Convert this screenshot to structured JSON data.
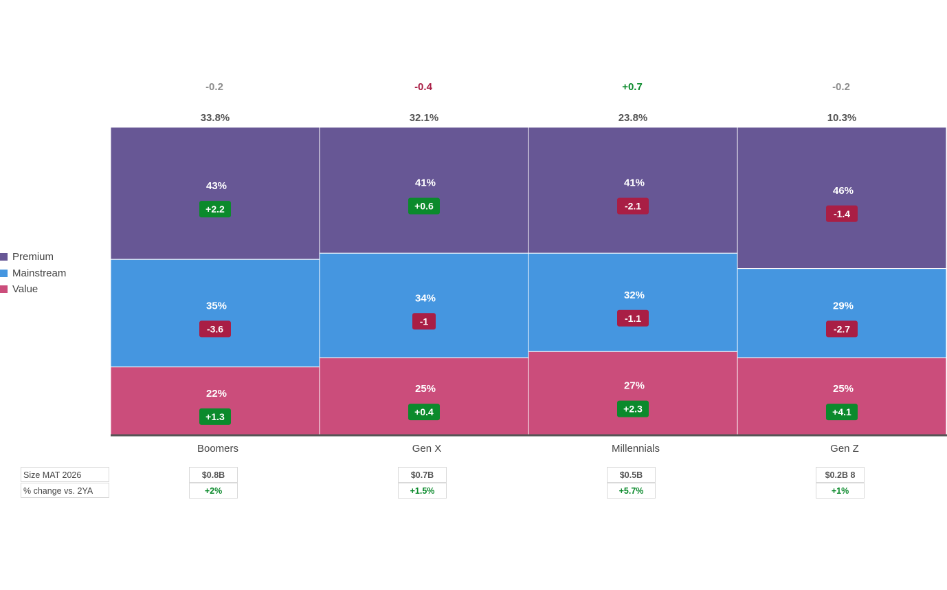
{
  "legend": {
    "items": [
      {
        "label": "Premium",
        "color": "#675795"
      },
      {
        "label": "Mainstream",
        "color": "#4596e0"
      },
      {
        "label": "Value",
        "color": "#cb4d7b"
      }
    ]
  },
  "colors": {
    "positive": "#0b8a2c",
    "negative": "#a91e45",
    "neutral": "#8c8c8c",
    "badge_positive": "#0b8a2c",
    "badge_negative": "#a91e45",
    "divider": "#ffffff",
    "baseline": "#555555"
  },
  "chart_data": {
    "type": "marimekko",
    "categories": [
      "Boomers",
      "Gen X",
      "Millennials",
      "Gen Z"
    ],
    "column_shares": [
      "33.8%",
      "32.1%",
      "23.8%",
      "10.3%"
    ],
    "column_share_changes": [
      "-0.2",
      "-0.4",
      "+0.7",
      "-0.2"
    ],
    "column_share_change_tone": [
      "neutral",
      "negative",
      "positive",
      "neutral"
    ],
    "series": [
      {
        "name": "Premium",
        "values": [
          43,
          41,
          41,
          46
        ],
        "labels": [
          "43%",
          "41%",
          "41%",
          "46%"
        ],
        "changes": [
          "+2.2",
          "+0.6",
          "-2.1",
          "-1.4"
        ]
      },
      {
        "name": "Mainstream",
        "values": [
          35,
          34,
          32,
          29
        ],
        "labels": [
          "35%",
          "34%",
          "32%",
          "29%"
        ],
        "changes": [
          "-3.6",
          "-1",
          "-1.1",
          "-2.7"
        ]
      },
      {
        "name": "Value",
        "values": [
          22,
          25,
          27,
          25
        ],
        "labels": [
          "22%",
          "25%",
          "27%",
          "25%"
        ],
        "changes": [
          "+1.3",
          "+0.4",
          "+2.3",
          "+4.1"
        ]
      }
    ]
  },
  "table": {
    "row_labels": [
      "Size MAT 2026",
      "% change vs. 2YA"
    ],
    "size": [
      "$0.8B",
      "$0.7B",
      "$0.5B",
      "$0.2B 8"
    ],
    "change": [
      "+2%",
      "+1.5%",
      "+5.7%",
      "+1%"
    ]
  }
}
